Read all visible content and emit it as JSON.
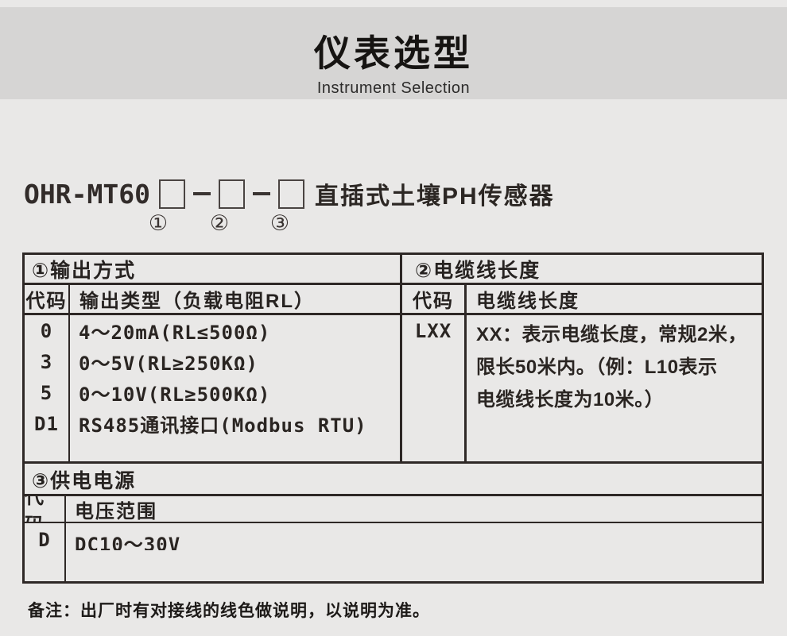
{
  "header": {
    "title": "仪表选型",
    "subtitle": "Instrument Selection"
  },
  "model": {
    "prefix": "OHR-MT60",
    "suffix": "直插式土壤PH传感器",
    "positions": [
      "①",
      "②",
      "③"
    ]
  },
  "selection_table": {
    "section1": {
      "title": "①输出方式",
      "col_code": "代码",
      "col_desc": "输出类型（负载电阻RL）",
      "rows": [
        {
          "code": "0",
          "desc": "4～20mA(RL≤500Ω)"
        },
        {
          "code": "3",
          "desc": "0～5V(RL≥250KΩ)"
        },
        {
          "code": "5",
          "desc": "0～10V(RL≥500KΩ)"
        },
        {
          "code": "D1",
          "desc": "RS485通讯接口(Modbus RTU)"
        }
      ]
    },
    "section2": {
      "title": "②电缆线长度",
      "col_code": "代码",
      "col_desc": "电缆线长度",
      "rows": [
        {
          "code": "LXX",
          "desc_lines": [
            "XX：表示电缆长度，常规2米，",
            "限长50米内。（例：L10表示",
            "电缆线长度为10米。）"
          ]
        }
      ]
    },
    "section3": {
      "title": "③供电电源",
      "col_code": "代码",
      "col_desc": "电压范围",
      "rows": [
        {
          "code": "D",
          "desc": "DC10～30V"
        }
      ]
    }
  },
  "note": "备注：出厂时有对接线的线色做说明，以说明为准。",
  "colors": {
    "band": "#d6d5d4",
    "page": "#e9e8e7",
    "border": "#2e2826",
    "text": "#262220"
  }
}
